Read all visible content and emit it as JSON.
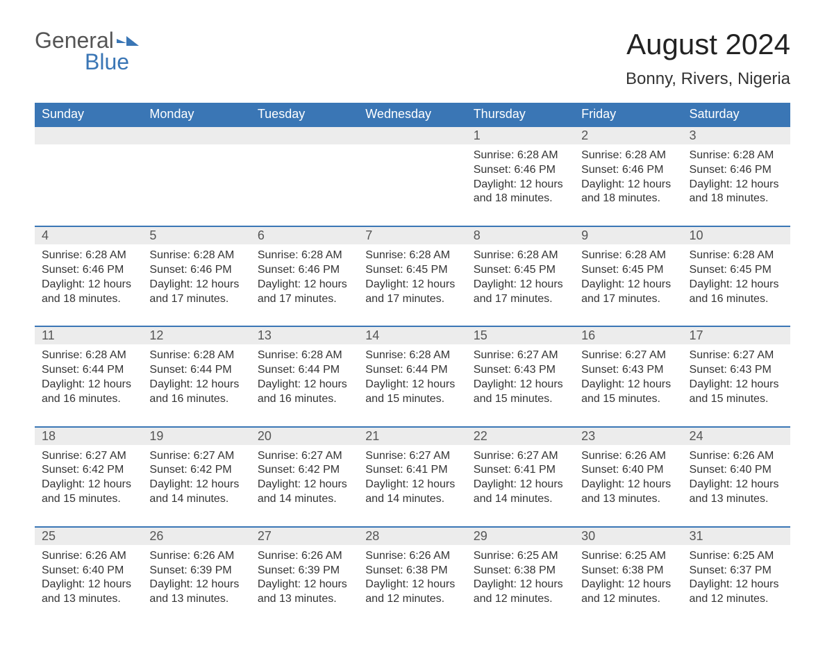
{
  "logo": {
    "text1": "General",
    "text2": "Blue"
  },
  "title": "August 2024",
  "location": "Bonny, Rivers, Nigeria",
  "colors": {
    "header_bg": "#3a76b5",
    "header_text": "#ffffff",
    "daynum_bg": "#ececec",
    "row_border": "#3a76b5",
    "body_text": "#333333",
    "logo_gray": "#555555",
    "logo_blue": "#3a76b5"
  },
  "weekdays": [
    "Sunday",
    "Monday",
    "Tuesday",
    "Wednesday",
    "Thursday",
    "Friday",
    "Saturday"
  ],
  "first_weekday_index": 4,
  "days": [
    {
      "n": 1,
      "sunrise": "6:28 AM",
      "sunset": "6:46 PM",
      "daylight": "12 hours and 18 minutes."
    },
    {
      "n": 2,
      "sunrise": "6:28 AM",
      "sunset": "6:46 PM",
      "daylight": "12 hours and 18 minutes."
    },
    {
      "n": 3,
      "sunrise": "6:28 AM",
      "sunset": "6:46 PM",
      "daylight": "12 hours and 18 minutes."
    },
    {
      "n": 4,
      "sunrise": "6:28 AM",
      "sunset": "6:46 PM",
      "daylight": "12 hours and 18 minutes."
    },
    {
      "n": 5,
      "sunrise": "6:28 AM",
      "sunset": "6:46 PM",
      "daylight": "12 hours and 17 minutes."
    },
    {
      "n": 6,
      "sunrise": "6:28 AM",
      "sunset": "6:46 PM",
      "daylight": "12 hours and 17 minutes."
    },
    {
      "n": 7,
      "sunrise": "6:28 AM",
      "sunset": "6:45 PM",
      "daylight": "12 hours and 17 minutes."
    },
    {
      "n": 8,
      "sunrise": "6:28 AM",
      "sunset": "6:45 PM",
      "daylight": "12 hours and 17 minutes."
    },
    {
      "n": 9,
      "sunrise": "6:28 AM",
      "sunset": "6:45 PM",
      "daylight": "12 hours and 17 minutes."
    },
    {
      "n": 10,
      "sunrise": "6:28 AM",
      "sunset": "6:45 PM",
      "daylight": "12 hours and 16 minutes."
    },
    {
      "n": 11,
      "sunrise": "6:28 AM",
      "sunset": "6:44 PM",
      "daylight": "12 hours and 16 minutes."
    },
    {
      "n": 12,
      "sunrise": "6:28 AM",
      "sunset": "6:44 PM",
      "daylight": "12 hours and 16 minutes."
    },
    {
      "n": 13,
      "sunrise": "6:28 AM",
      "sunset": "6:44 PM",
      "daylight": "12 hours and 16 minutes."
    },
    {
      "n": 14,
      "sunrise": "6:28 AM",
      "sunset": "6:44 PM",
      "daylight": "12 hours and 15 minutes."
    },
    {
      "n": 15,
      "sunrise": "6:27 AM",
      "sunset": "6:43 PM",
      "daylight": "12 hours and 15 minutes."
    },
    {
      "n": 16,
      "sunrise": "6:27 AM",
      "sunset": "6:43 PM",
      "daylight": "12 hours and 15 minutes."
    },
    {
      "n": 17,
      "sunrise": "6:27 AM",
      "sunset": "6:43 PM",
      "daylight": "12 hours and 15 minutes."
    },
    {
      "n": 18,
      "sunrise": "6:27 AM",
      "sunset": "6:42 PM",
      "daylight": "12 hours and 15 minutes."
    },
    {
      "n": 19,
      "sunrise": "6:27 AM",
      "sunset": "6:42 PM",
      "daylight": "12 hours and 14 minutes."
    },
    {
      "n": 20,
      "sunrise": "6:27 AM",
      "sunset": "6:42 PM",
      "daylight": "12 hours and 14 minutes."
    },
    {
      "n": 21,
      "sunrise": "6:27 AM",
      "sunset": "6:41 PM",
      "daylight": "12 hours and 14 minutes."
    },
    {
      "n": 22,
      "sunrise": "6:27 AM",
      "sunset": "6:41 PM",
      "daylight": "12 hours and 14 minutes."
    },
    {
      "n": 23,
      "sunrise": "6:26 AM",
      "sunset": "6:40 PM",
      "daylight": "12 hours and 13 minutes."
    },
    {
      "n": 24,
      "sunrise": "6:26 AM",
      "sunset": "6:40 PM",
      "daylight": "12 hours and 13 minutes."
    },
    {
      "n": 25,
      "sunrise": "6:26 AM",
      "sunset": "6:40 PM",
      "daylight": "12 hours and 13 minutes."
    },
    {
      "n": 26,
      "sunrise": "6:26 AM",
      "sunset": "6:39 PM",
      "daylight": "12 hours and 13 minutes."
    },
    {
      "n": 27,
      "sunrise": "6:26 AM",
      "sunset": "6:39 PM",
      "daylight": "12 hours and 13 minutes."
    },
    {
      "n": 28,
      "sunrise": "6:26 AM",
      "sunset": "6:38 PM",
      "daylight": "12 hours and 12 minutes."
    },
    {
      "n": 29,
      "sunrise": "6:25 AM",
      "sunset": "6:38 PM",
      "daylight": "12 hours and 12 minutes."
    },
    {
      "n": 30,
      "sunrise": "6:25 AM",
      "sunset": "6:38 PM",
      "daylight": "12 hours and 12 minutes."
    },
    {
      "n": 31,
      "sunrise": "6:25 AM",
      "sunset": "6:37 PM",
      "daylight": "12 hours and 12 minutes."
    }
  ],
  "labels": {
    "sunrise": "Sunrise: ",
    "sunset": "Sunset: ",
    "daylight": "Daylight: "
  }
}
